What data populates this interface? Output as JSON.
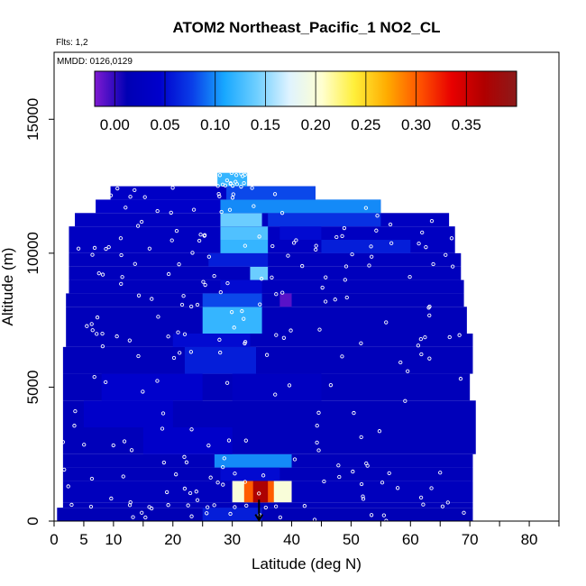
{
  "chart_data": {
    "type": "heatmap",
    "title": "ATOM2 Northeast_Pacific_1 NO2_CL",
    "flights_text": "Flts: 1,2",
    "dates_text": "MMDD: 0126,0129",
    "xlabel": "Latitude (deg N)",
    "ylabel": "Altitude (m)",
    "xlim": [
      0,
      85
    ],
    "ylim": [
      0,
      17500
    ],
    "x_ticks": [
      0,
      5,
      10,
      20,
      30,
      40,
      50,
      60,
      70,
      80
    ],
    "x_minor_ticks": [
      0,
      5,
      10,
      15,
      20,
      25,
      30,
      35,
      40,
      45,
      50,
      55,
      60,
      65,
      70,
      75,
      80,
      85
    ],
    "y_ticks": [
      0,
      5000,
      10000,
      15000
    ],
    "colorbar": {
      "range": [
        -0.02,
        0.4
      ],
      "ticks": [
        "0.00",
        "0.05",
        "0.10",
        "0.15",
        "0.20",
        "0.25",
        "0.30",
        "0.35"
      ],
      "tick_values": [
        0.0,
        0.05,
        0.1,
        0.15,
        0.2,
        0.25,
        0.3,
        0.35
      ],
      "stops": [
        "#7f1ad1",
        "#0000b4",
        "#0000cc",
        "#0a3ee8",
        "#18a8ff",
        "#6fcfff",
        "#dff3ff",
        "#ffffd0",
        "#ffef3a",
        "#ffac00",
        "#ff5400",
        "#e80000",
        "#b00000",
        "#8c1a1a"
      ]
    },
    "rows": [
      {
        "alt0": 0,
        "alt1": 500,
        "x0": 0.5,
        "x1": 70.5,
        "base": 0.015,
        "features": [
          {
            "x0": 25,
            "x1": 35,
            "v": 0.06
          }
        ]
      },
      {
        "alt0": 500,
        "alt1": 700,
        "x0": 1.5,
        "x1": 70.5,
        "base": 0.02,
        "features": []
      },
      {
        "alt0": 700,
        "alt1": 1500,
        "x0": 1.5,
        "x1": 70.5,
        "base": 0.025,
        "features": [
          {
            "x0": 30,
            "x1": 40,
            "v": 0.2
          },
          {
            "x0": 32,
            "x1": 37,
            "v": 0.3
          },
          {
            "x0": 33.5,
            "x1": 36,
            "v": 0.37
          }
        ]
      },
      {
        "alt0": 1500,
        "alt1": 2000,
        "x0": 1.5,
        "x1": 70.5,
        "base": 0.02,
        "features": [
          {
            "x0": 28,
            "x1": 38,
            "v": 0.05
          }
        ]
      },
      {
        "alt0": 2000,
        "alt1": 2500,
        "x0": 1.5,
        "x1": 70.5,
        "base": 0.02,
        "features": [
          {
            "x0": 27,
            "x1": 40,
            "v": 0.1
          }
        ]
      },
      {
        "alt0": 2500,
        "alt1": 3500,
        "x0": 1.5,
        "x1": 71,
        "base": 0.02,
        "features": [
          {
            "x0": 15,
            "x1": 30,
            "v": 0.04
          }
        ]
      },
      {
        "alt0": 3500,
        "alt1": 4500,
        "x0": 1.5,
        "x1": 71,
        "base": 0.02,
        "features": [
          {
            "x0": 5,
            "x1": 20,
            "v": 0.04
          }
        ]
      },
      {
        "alt0": 4500,
        "alt1": 5500,
        "x0": 1.5,
        "x1": 70,
        "base": 0.02,
        "features": [
          {
            "x0": 8,
            "x1": 25,
            "v": 0.045
          },
          {
            "x0": 30,
            "x1": 45,
            "v": 0.03
          }
        ]
      },
      {
        "alt0": 5500,
        "alt1": 6500,
        "x0": 1.5,
        "x1": 70.5,
        "base": 0.02,
        "features": [
          {
            "x0": 22,
            "x1": 34,
            "v": 0.06
          }
        ]
      },
      {
        "alt0": 6500,
        "alt1": 7000,
        "x0": 2,
        "x1": 70.5,
        "base": 0.02,
        "features": [
          {
            "x0": 20,
            "x1": 33,
            "v": 0.05
          }
        ]
      },
      {
        "alt0": 7000,
        "alt1": 8000,
        "x0": 2,
        "x1": 69.5,
        "base": 0.02,
        "features": [
          {
            "x0": 25,
            "x1": 35,
            "v": 0.12
          }
        ]
      },
      {
        "alt0": 8000,
        "alt1": 8500,
        "x0": 2,
        "x1": 69,
        "base": 0.02,
        "features": [
          {
            "x0": 25,
            "x1": 35,
            "v": 0.08
          },
          {
            "x0": 38,
            "x1": 40,
            "v": -0.01
          }
        ]
      },
      {
        "alt0": 8500,
        "alt1": 9000,
        "x0": 2.5,
        "x1": 69,
        "base": 0.025,
        "features": [
          {
            "x0": 28,
            "x1": 35,
            "v": 0.05
          }
        ]
      },
      {
        "alt0": 9000,
        "alt1": 9500,
        "x0": 2.5,
        "x1": 68.5,
        "base": 0.025,
        "features": [
          {
            "x0": 33,
            "x1": 36,
            "v": 0.14
          }
        ]
      },
      {
        "alt0": 9500,
        "alt1": 10000,
        "x0": 2.5,
        "x1": 68.5,
        "base": 0.025,
        "features": [
          {
            "x0": 26,
            "x1": 36,
            "v": 0.06
          }
        ]
      },
      {
        "alt0": 10000,
        "alt1": 10500,
        "x0": 2.5,
        "x1": 67.5,
        "base": 0.03,
        "features": [
          {
            "x0": 28,
            "x1": 36,
            "v": 0.12
          },
          {
            "x0": 45,
            "x1": 60,
            "v": 0.06
          }
        ]
      },
      {
        "alt0": 10500,
        "alt1": 11000,
        "x0": 2.5,
        "x1": 67.5,
        "base": 0.03,
        "features": [
          {
            "x0": 28,
            "x1": 36,
            "v": 0.13
          },
          {
            "x0": 38,
            "x1": 45,
            "v": 0.05
          }
        ]
      },
      {
        "alt0": 11000,
        "alt1": 11500,
        "x0": 3.5,
        "x1": 66.5,
        "base": 0.03,
        "features": [
          {
            "x0": 28,
            "x1": 35,
            "v": 0.14
          },
          {
            "x0": 36,
            "x1": 55,
            "v": 0.07
          }
        ]
      },
      {
        "alt0": 11500,
        "alt1": 12000,
        "x0": 7,
        "x1": 55,
        "base": 0.04,
        "features": [
          {
            "x0": 28,
            "x1": 55,
            "v": 0.1
          }
        ]
      },
      {
        "alt0": 12000,
        "alt1": 12500,
        "x0": 9.5,
        "x1": 44,
        "base": 0.035,
        "features": [
          {
            "x0": 29,
            "x1": 44,
            "v": 0.08
          }
        ]
      },
      {
        "alt0": 12500,
        "alt1": 13000,
        "x0": 27.5,
        "x1": 32.5,
        "base": 0.12,
        "features": []
      }
    ],
    "point_density_note": "scattered white sample points"
  }
}
